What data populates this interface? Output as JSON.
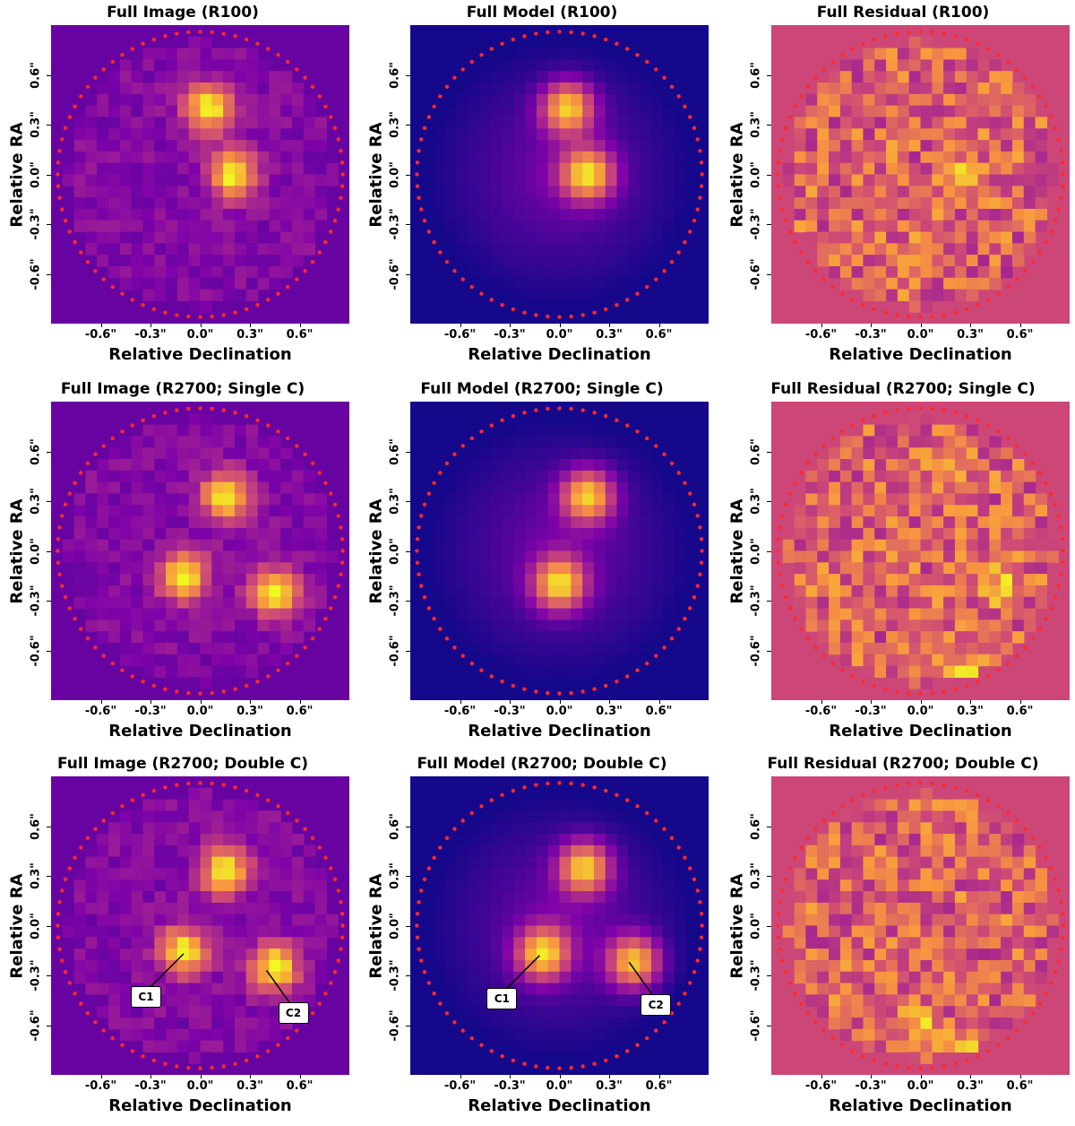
{
  "figure": {
    "x_label": "Relative Declination",
    "y_label": "Relative RA",
    "tick_labels": [
      "-0.6\"",
      "-0.3\"",
      "0.0\"",
      "0.3\"",
      "0.6\""
    ],
    "tick_values": [
      -0.6,
      -0.3,
      0.0,
      0.3,
      0.6
    ],
    "callouts": [
      "C1",
      "C2"
    ],
    "colors": {
      "image_bg": "#5a17a3",
      "model_bg": "#1f0c82",
      "residual_bg": "#c94b76",
      "aperture_dots": "#ff2a2a",
      "bright": "#ffe35a"
    }
  },
  "chart_data": [
    {
      "type": "heatmap",
      "title": "Full Image (R100)",
      "xlabel": "Relative Declination",
      "ylabel": "Relative RA",
      "kind": "image",
      "colormap": "plasma",
      "xlim": [
        -0.9,
        0.9
      ],
      "ylim": [
        -0.9,
        0.9
      ],
      "sources": [
        {
          "x": 0.05,
          "y": 0.4
        },
        {
          "x": 0.2,
          "y": 0.0
        }
      ]
    },
    {
      "type": "heatmap",
      "title": "Full Model (R100)",
      "xlabel": "Relative Declination",
      "ylabel": "Relative RA",
      "kind": "model",
      "colormap": "plasma",
      "xlim": [
        -0.9,
        0.9
      ],
      "ylim": [
        -0.9,
        0.9
      ],
      "sources": [
        {
          "x": 0.05,
          "y": 0.4
        },
        {
          "x": 0.17,
          "y": 0.0
        }
      ]
    },
    {
      "type": "heatmap",
      "title": "Full Residual (R100)",
      "xlabel": "Relative Declination",
      "ylabel": "Relative RA",
      "kind": "residual",
      "colormap": "plasma",
      "xlim": [
        -0.9,
        0.9
      ],
      "ylim": [
        -0.9,
        0.9
      ],
      "sources": [
        {
          "x": 0.27,
          "y": -0.02
        },
        {
          "x": 0.0,
          "y": -0.5
        }
      ]
    },
    {
      "type": "heatmap",
      "title": "Full Image (R2700; Single C)",
      "xlabel": "Relative Declination",
      "ylabel": "Relative RA",
      "kind": "image",
      "colormap": "plasma",
      "xlim": [
        -0.9,
        0.9
      ],
      "ylim": [
        -0.9,
        0.9
      ],
      "sources": [
        {
          "x": 0.15,
          "y": 0.33
        },
        {
          "x": -0.1,
          "y": -0.15
        },
        {
          "x": 0.45,
          "y": -0.25
        }
      ]
    },
    {
      "type": "heatmap",
      "title": "Full Model (R2700; Single C)",
      "xlabel": "Relative Declination",
      "ylabel": "Relative RA",
      "kind": "model",
      "colormap": "plasma",
      "xlim": [
        -0.9,
        0.9
      ],
      "ylim": [
        -0.9,
        0.9
      ],
      "sources": [
        {
          "x": 0.17,
          "y": 0.33
        },
        {
          "x": 0.0,
          "y": -0.2
        }
      ]
    },
    {
      "type": "heatmap",
      "title": "Full Residual (R2700; Single C)",
      "xlabel": "Relative Declination",
      "ylabel": "Relative RA",
      "kind": "residual",
      "colormap": "plasma",
      "xlim": [
        -0.9,
        0.9
      ],
      "ylim": [
        -0.9,
        0.9
      ],
      "sources": [
        {
          "x": 0.45,
          "y": -0.2
        },
        {
          "x": 0.3,
          "y": -0.75
        },
        {
          "x": 0.15,
          "y": 0.5
        }
      ]
    },
    {
      "type": "heatmap",
      "title": "Full Image (R2700; Double C)",
      "xlabel": "Relative Declination",
      "ylabel": "Relative RA",
      "kind": "image",
      "colormap": "plasma",
      "xlim": [
        -0.9,
        0.9
      ],
      "ylim": [
        -0.9,
        0.9
      ],
      "sources": [
        {
          "x": 0.15,
          "y": 0.33
        },
        {
          "x": -0.1,
          "y": -0.15
        },
        {
          "x": 0.45,
          "y": -0.25
        }
      ],
      "callouts": [
        {
          "label": "C1",
          "x": -0.1,
          "y": -0.17
        },
        {
          "label": "C2",
          "x": 0.4,
          "y": -0.27
        }
      ]
    },
    {
      "type": "heatmap",
      "title": "Full Model (R2700; Double C)",
      "xlabel": "Relative Declination",
      "ylabel": "Relative RA",
      "kind": "model",
      "colormap": "plasma",
      "xlim": [
        -0.9,
        0.9
      ],
      "ylim": [
        -0.9,
        0.9
      ],
      "sources": [
        {
          "x": 0.15,
          "y": 0.35
        },
        {
          "x": -0.1,
          "y": -0.17
        },
        {
          "x": 0.45,
          "y": -0.22
        }
      ],
      "callouts": [
        {
          "label": "C1",
          "x": -0.12,
          "y": -0.18
        },
        {
          "label": "C2",
          "x": 0.42,
          "y": -0.22
        }
      ]
    },
    {
      "type": "heatmap",
      "title": "Full Residual (R2700; Double C)",
      "xlabel": "Relative Declination",
      "ylabel": "Relative RA",
      "kind": "residual",
      "colormap": "plasma",
      "xlim": [
        -0.9,
        0.9
      ],
      "ylim": [
        -0.9,
        0.9
      ],
      "sources": [
        {
          "x": 0.3,
          "y": -0.75
        },
        {
          "x": 0.0,
          "y": -0.62
        }
      ]
    }
  ]
}
